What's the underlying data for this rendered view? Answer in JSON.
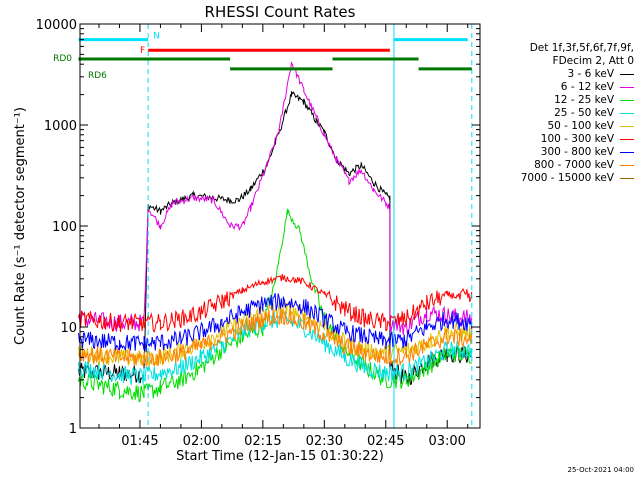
{
  "chart_data": {
    "type": "line",
    "title": "RHESSI Count Rates",
    "xlabel": "Start Time (12-Jan-15 01:30:22)",
    "ylabel": "Count Rate (s⁻¹ detector segment⁻¹)",
    "yscale": "log",
    "ylim": [
      1,
      10000
    ],
    "y_ticks": [
      1,
      10,
      100,
      1000,
      10000
    ],
    "y_tick_labels": [
      "1",
      "10",
      "100",
      "1000",
      "10000"
    ],
    "xlim": [
      "01:30:22",
      "03:08:00"
    ],
    "x_ticks": [
      "01:45",
      "02:00",
      "02:15",
      "02:30",
      "02:45",
      "03:00"
    ],
    "legend_header": [
      "Det 1f,3f,5f,6f,7f,9f,",
      "FDecim 2, Att 0"
    ],
    "legend_position": "right",
    "timestamp": "25-Oct-2021 04:00",
    "series": [
      {
        "name": "3 - 6 keV",
        "color": "#000000",
        "points": [
          [
            "01:30",
            3.6
          ],
          [
            "01:40",
            3.5
          ],
          [
            "01:46",
            3.4
          ],
          [
            "01:47",
            160
          ],
          [
            "01:50",
            140
          ],
          [
            "01:53",
            170
          ],
          [
            "01:58",
            200
          ],
          [
            "02:03",
            190
          ],
          [
            "02:07",
            180
          ],
          [
            "02:09",
            180
          ],
          [
            "02:12",
            230
          ],
          [
            "02:16",
            400
          ],
          [
            "02:19",
            850
          ],
          [
            "02:22",
            2000
          ],
          [
            "02:25",
            1700
          ],
          [
            "02:28",
            1100
          ],
          [
            "02:30",
            850
          ],
          [
            "02:33",
            460
          ],
          [
            "02:36",
            330
          ],
          [
            "02:39",
            400
          ],
          [
            "02:42",
            270
          ],
          [
            "02:45",
            200
          ],
          [
            "02:46",
            190
          ],
          [
            "02:46",
            4
          ],
          [
            "02:50",
            3
          ],
          [
            "02:55",
            4.5
          ],
          [
            "03:00",
            5.5
          ],
          [
            "03:06",
            5.2
          ]
        ]
      },
      {
        "name": "6 - 12 keV",
        "color": "#e000e0",
        "points": [
          [
            "01:30",
            12
          ],
          [
            "01:40",
            11
          ],
          [
            "01:46",
            11
          ],
          [
            "01:47",
            150
          ],
          [
            "01:50",
            100
          ],
          [
            "01:53",
            170
          ],
          [
            "01:58",
            190
          ],
          [
            "02:03",
            180
          ],
          [
            "02:07",
            100
          ],
          [
            "02:10",
            100
          ],
          [
            "02:12",
            150
          ],
          [
            "02:16",
            400
          ],
          [
            "02:19",
            900
          ],
          [
            "02:22",
            4200
          ],
          [
            "02:25",
            2200
          ],
          [
            "02:28",
            1200
          ],
          [
            "02:30",
            800
          ],
          [
            "02:33",
            450
          ],
          [
            "02:36",
            280
          ],
          [
            "02:39",
            360
          ],
          [
            "02:42",
            230
          ],
          [
            "02:45",
            170
          ],
          [
            "02:46",
            150
          ],
          [
            "02:46",
            11
          ],
          [
            "02:50",
            10
          ],
          [
            "02:55",
            14
          ],
          [
            "03:00",
            13
          ],
          [
            "03:06",
            12
          ]
        ]
      },
      {
        "name": "12 - 25 keV",
        "color": "#00dd00",
        "points": [
          [
            "01:30",
            3
          ],
          [
            "01:40",
            2.4
          ],
          [
            "01:46",
            2.2
          ],
          [
            "01:50",
            2.5
          ],
          [
            "01:55",
            3
          ],
          [
            "02:00",
            4
          ],
          [
            "02:05",
            6
          ],
          [
            "02:10",
            8
          ],
          [
            "02:15",
            10
          ],
          [
            "02:18",
            28
          ],
          [
            "02:21",
            140
          ],
          [
            "02:24",
            90
          ],
          [
            "02:27",
            28
          ],
          [
            "02:30",
            12
          ],
          [
            "02:35",
            6
          ],
          [
            "02:40",
            4
          ],
          [
            "02:45",
            3
          ],
          [
            "02:50",
            3
          ],
          [
            "02:55",
            4
          ],
          [
            "03:00",
            5.5
          ],
          [
            "03:06",
            5.3
          ]
        ]
      },
      {
        "name": "25 - 50 keV",
        "color": "#00e0e0",
        "points": [
          [
            "01:30",
            4
          ],
          [
            "01:40",
            3.4
          ],
          [
            "01:46",
            3.2
          ],
          [
            "01:50",
            3.5
          ],
          [
            "01:55",
            4
          ],
          [
            "02:00",
            5
          ],
          [
            "02:05",
            6.5
          ],
          [
            "02:10",
            9
          ],
          [
            "02:15",
            11
          ],
          [
            "02:20",
            12
          ],
          [
            "02:25",
            10
          ],
          [
            "02:30",
            7
          ],
          [
            "02:35",
            5
          ],
          [
            "02:40",
            4
          ],
          [
            "02:45",
            3.5
          ],
          [
            "02:50",
            3.6
          ],
          [
            "02:55",
            4.5
          ],
          [
            "03:00",
            6
          ],
          [
            "03:06",
            5.8
          ]
        ]
      },
      {
        "name": "50 - 100 keV",
        "color": "#e0c000",
        "points": [
          [
            "01:30",
            5.5
          ],
          [
            "01:40",
            5
          ],
          [
            "01:46",
            4.8
          ],
          [
            "01:50",
            5
          ],
          [
            "01:55",
            6
          ],
          [
            "02:00",
            7
          ],
          [
            "02:05",
            9
          ],
          [
            "02:10",
            11
          ],
          [
            "02:15",
            14
          ],
          [
            "02:20",
            15
          ],
          [
            "02:25",
            13
          ],
          [
            "02:30",
            10
          ],
          [
            "02:35",
            7
          ],
          [
            "02:40",
            6
          ],
          [
            "02:45",
            5.5
          ],
          [
            "02:50",
            5.8
          ],
          [
            "02:55",
            7
          ],
          [
            "03:00",
            9
          ],
          [
            "03:06",
            8.5
          ]
        ]
      },
      {
        "name": "100 - 300 keV",
        "color": "#ff0000",
        "points": [
          [
            "01:30",
            12
          ],
          [
            "01:40",
            11
          ],
          [
            "01:46",
            11
          ],
          [
            "01:50",
            11
          ],
          [
            "01:55",
            12
          ],
          [
            "02:00",
            14
          ],
          [
            "02:05",
            18
          ],
          [
            "02:10",
            23
          ],
          [
            "02:15",
            28
          ],
          [
            "02:20",
            31
          ],
          [
            "02:25",
            28
          ],
          [
            "02:30",
            21
          ],
          [
            "02:35",
            15
          ],
          [
            "02:40",
            12
          ],
          [
            "02:45",
            11
          ],
          [
            "02:50",
            12
          ],
          [
            "02:55",
            17
          ],
          [
            "03:00",
            21
          ],
          [
            "03:06",
            19
          ]
        ]
      },
      {
        "name": "300 - 800 keV",
        "color": "#0000ff",
        "points": [
          [
            "01:30",
            7.5
          ],
          [
            "01:40",
            7
          ],
          [
            "01:46",
            6.8
          ],
          [
            "01:50",
            7
          ],
          [
            "01:55",
            7.5
          ],
          [
            "02:00",
            9
          ],
          [
            "02:05",
            11
          ],
          [
            "02:10",
            14
          ],
          [
            "02:15",
            17
          ],
          [
            "02:20",
            18
          ],
          [
            "02:25",
            16
          ],
          [
            "02:30",
            12
          ],
          [
            "02:35",
            9
          ],
          [
            "02:40",
            8
          ],
          [
            "02:45",
            7.2
          ],
          [
            "02:50",
            7.5
          ],
          [
            "02:55",
            10
          ],
          [
            "03:00",
            12
          ],
          [
            "03:06",
            11
          ]
        ]
      },
      {
        "name": "800 - 7000 keV",
        "color": "#ff8000",
        "points": [
          [
            "01:30",
            5.5
          ],
          [
            "01:40",
            5
          ],
          [
            "01:46",
            4.9
          ],
          [
            "01:50",
            5
          ],
          [
            "01:55",
            5.5
          ],
          [
            "02:00",
            6.5
          ],
          [
            "02:05",
            8
          ],
          [
            "02:10",
            10
          ],
          [
            "02:15",
            12
          ],
          [
            "02:20",
            13
          ],
          [
            "02:25",
            11
          ],
          [
            "02:30",
            8.5
          ],
          [
            "02:35",
            6.5
          ],
          [
            "02:40",
            5.5
          ],
          [
            "02:45",
            5
          ],
          [
            "02:50",
            5.2
          ],
          [
            "02:55",
            6.5
          ],
          [
            "03:00",
            8
          ],
          [
            "03:06",
            7.5
          ]
        ]
      },
      {
        "name": "7000 - 15000 keV",
        "color": "#996600",
        "points": []
      }
    ],
    "flag_bars": [
      {
        "label": "N",
        "color": "#00e0ff",
        "level": 7000,
        "segments": [
          [
            "01:30",
            "01:47"
          ],
          [
            "02:47",
            "03:05"
          ]
        ]
      },
      {
        "label": "F",
        "color": "#ff0000",
        "level": 5500,
        "segments": [
          [
            "01:47",
            "02:46"
          ]
        ]
      },
      {
        "label": "RD0",
        "color": "#007700",
        "level": 4500,
        "segments": [
          [
            "01:30",
            "02:07"
          ],
          [
            "02:32",
            "02:53"
          ]
        ]
      },
      {
        "label": "RD6",
        "color": "#007700",
        "level": 3600,
        "segments": [
          [
            "02:07",
            "02:32"
          ],
          [
            "02:53",
            "03:06"
          ]
        ]
      }
    ],
    "markers": [
      {
        "time": "01:47",
        "style": "dashed"
      },
      {
        "time": "02:47",
        "style": "solid"
      },
      {
        "time": "03:06",
        "style": "dashed"
      }
    ],
    "grid": false
  }
}
